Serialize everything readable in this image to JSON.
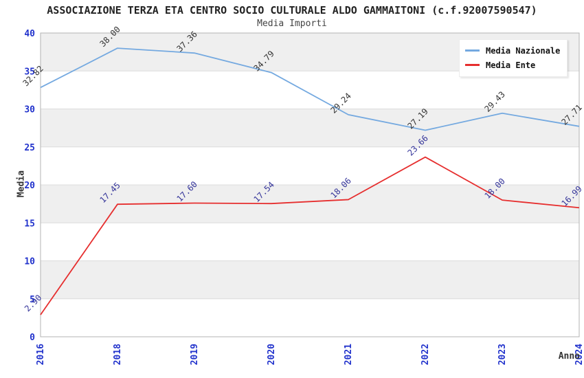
{
  "header": {
    "title": "ASSOCIAZIONE TERZA ETA CENTRO SOCIO CULTURALE ALDO GAMMAITONI (c.f.92007590547)",
    "subtitle": "Media Importi"
  },
  "colors": {
    "background": "#ffffff",
    "band_gray": "#efefef",
    "gridline": "#dcdcdc",
    "plot_border": "#b3b3b3",
    "tick_label_blue": "#2233cc",
    "nazionale_line": "#74a9e0",
    "nazionale_value_label": "#333333",
    "ente_line": "#e62e2e",
    "ente_value_label": "#333399",
    "axis_title": "#333333",
    "legend_text": "#111111"
  },
  "chart_data": {
    "type": "line",
    "title": "ASSOCIAZIONE TERZA ETA CENTRO SOCIO CULTURALE ALDO GAMMAITONI (c.f.92007590547)",
    "subtitle": "Media Importi",
    "xlabel": "Anno",
    "ylabel": "Media",
    "categories": [
      "2016",
      "2018",
      "2019",
      "2020",
      "2021",
      "2022",
      "2023",
      "2024"
    ],
    "series": [
      {
        "name": "Media Nazionale",
        "color": "#74a9e0",
        "label_color": "#333333",
        "values": [
          32.82,
          38.0,
          37.36,
          34.79,
          29.24,
          27.19,
          29.43,
          27.71
        ],
        "labels": [
          "32.82",
          "38.00",
          "37.36",
          "34.79",
          "29.24",
          "27.19",
          "29.43",
          "27.71"
        ]
      },
      {
        "name": "Media Ente",
        "color": "#e62e2e",
        "label_color": "#333399",
        "values": [
          2.9,
          17.45,
          17.6,
          17.54,
          18.06,
          23.66,
          18.0,
          16.99
        ],
        "labels": [
          "2.90",
          "17.45",
          "17.60",
          "17.54",
          "18.06",
          "23.66",
          "18.00",
          "16.99"
        ]
      }
    ],
    "ylim": [
      0,
      40
    ],
    "ytick_step": 5,
    "yticks": [
      "0",
      "5",
      "10",
      "15",
      "20",
      "25",
      "30",
      "35",
      "40"
    ],
    "grid": "horizontal, alternating gray/white 5-unit bands",
    "legend_position": "top-right"
  }
}
